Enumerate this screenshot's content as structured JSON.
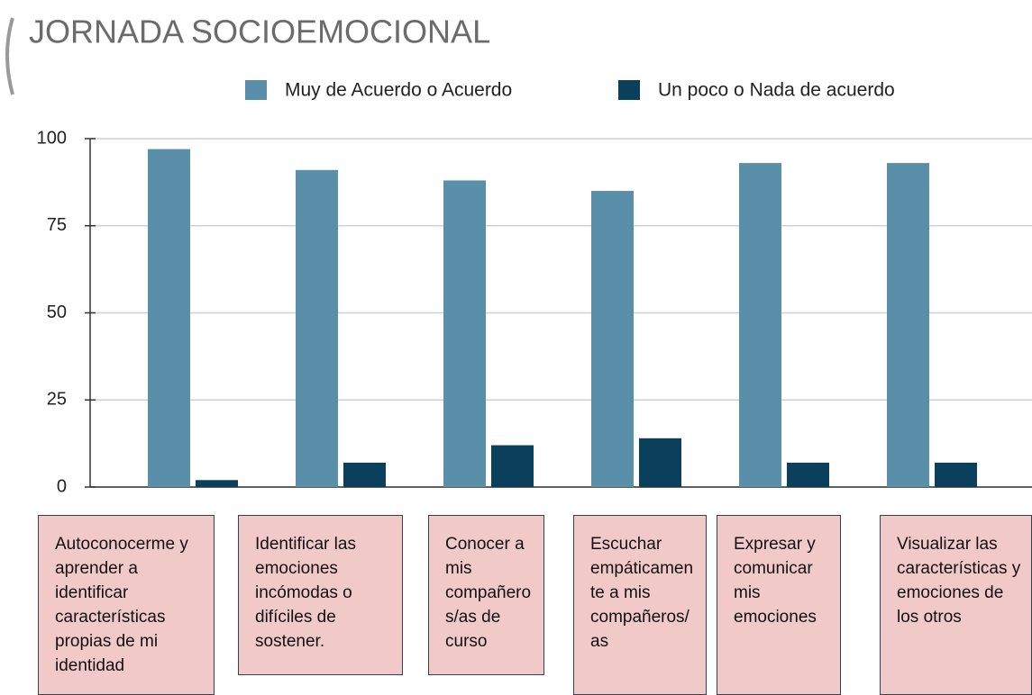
{
  "chart_data": {
    "type": "bar",
    "title": "JORNADA SOCIOEMOCIONAL",
    "categories": [
      "Autoconocerme y aprender a identificar características propias de mi identidad",
      "Identificar las emociones incómodas o difíciles de sostener.",
      "Conocer a mis compañeros/as de curso",
      "Escuchar empáticamente a mis compañeros/as",
      "Expresar y comunicar mis emociones",
      "Visualizar las características y emociones de los otros"
    ],
    "series": [
      {
        "name": "Muy de Acuerdo o Acuerdo",
        "color": "#5a8fa9",
        "values": [
          97,
          91,
          88,
          85,
          93,
          93
        ]
      },
      {
        "name": "Un poco o Nada de acuerdo",
        "color": "#0b405d",
        "values": [
          2,
          7,
          12,
          14,
          7,
          7
        ]
      }
    ],
    "ylim": [
      0,
      100
    ],
    "yticks": [
      0,
      25,
      50,
      75,
      100
    ],
    "grid": true,
    "legend": "top"
  }
}
